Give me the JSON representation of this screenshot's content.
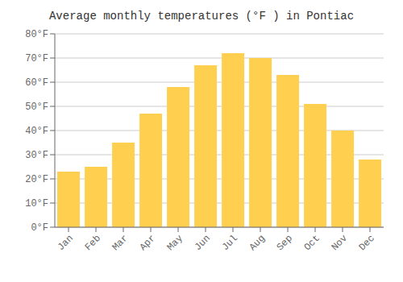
{
  "chart_data": {
    "type": "bar",
    "title": "Average monthly temperatures (°F ) in Pontiac",
    "categories": [
      "Jan",
      "Feb",
      "Mar",
      "Apr",
      "May",
      "Jun",
      "Jul",
      "Aug",
      "Sep",
      "Oct",
      "Nov",
      "Dec"
    ],
    "values": [
      23,
      25,
      35,
      47,
      58,
      67,
      72,
      70,
      63,
      51,
      40,
      28
    ],
    "color": "#FFD050",
    "ylim": [
      0,
      80
    ],
    "yticks": [
      {
        "value": 0,
        "label": "0°F"
      },
      {
        "value": 10,
        "label": "10°F"
      },
      {
        "value": 20,
        "label": "20°F"
      },
      {
        "value": 30,
        "label": "30°F"
      },
      {
        "value": 40,
        "label": "40°F"
      },
      {
        "value": 50,
        "label": "50°F"
      },
      {
        "value": 60,
        "label": "60°F"
      },
      {
        "value": 70,
        "label": "70°F"
      },
      {
        "value": 80,
        "label": "80°F"
      }
    ],
    "grid": true
  }
}
